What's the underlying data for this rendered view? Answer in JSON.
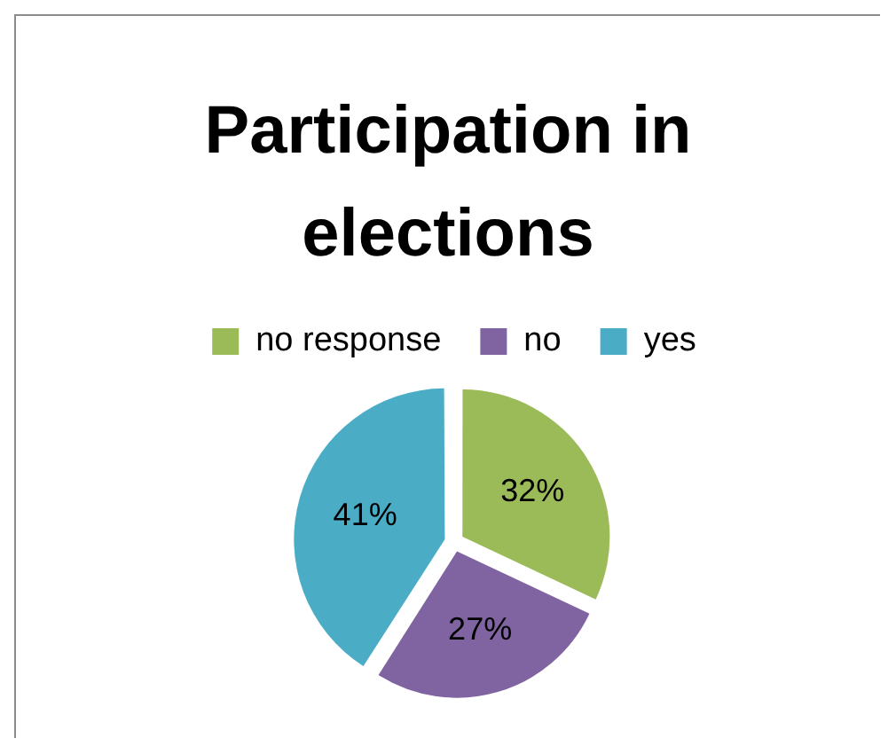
{
  "chart_data": {
    "type": "pie",
    "title": "Participation in elections",
    "categories": [
      "no response",
      "no",
      "yes"
    ],
    "values": [
      32,
      27,
      41
    ],
    "colors": [
      "#9bbb59",
      "#8064a2",
      "#4bacc6"
    ],
    "value_labels": [
      "32%",
      "27%",
      "41%"
    ],
    "legend": "top"
  }
}
